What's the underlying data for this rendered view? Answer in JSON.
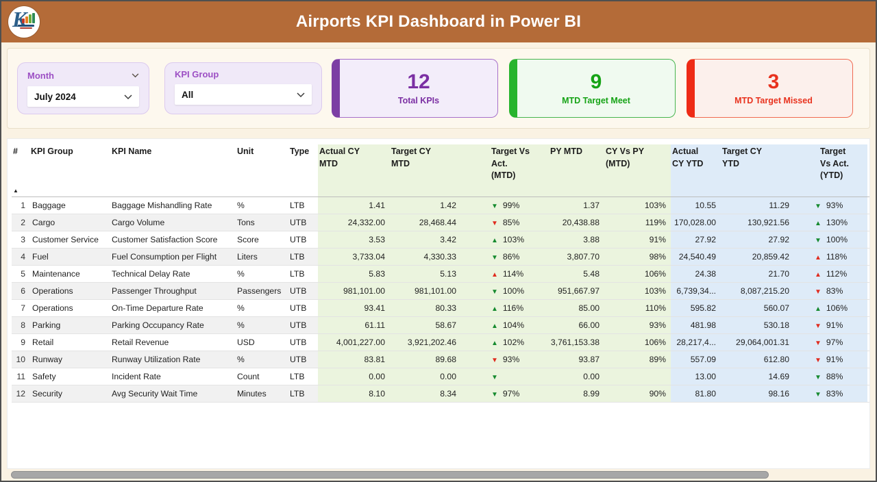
{
  "header": {
    "title": "Airports KPI Dashboard in Power BI",
    "logo_letter": "K"
  },
  "filters": {
    "month": {
      "label": "Month",
      "value": "July 2024"
    },
    "kpi_group": {
      "label": "KPI Group",
      "value": "All"
    }
  },
  "cards": {
    "total": {
      "value": "12",
      "label": "Total KPIs"
    },
    "meet": {
      "value": "9",
      "label": "MTD Target Meet"
    },
    "missed": {
      "value": "3",
      "label": "MTD Target Missed"
    }
  },
  "table": {
    "columns": [
      {
        "key": "num",
        "label": "#",
        "section": "plain"
      },
      {
        "key": "group",
        "label": "KPI Group",
        "section": "plain"
      },
      {
        "key": "name",
        "label": "KPI Name",
        "section": "plain"
      },
      {
        "key": "unit",
        "label": "Unit",
        "section": "plain"
      },
      {
        "key": "type",
        "label": "Type",
        "section": "plain"
      },
      {
        "key": "actual_mtd",
        "label": "Actual CY\nMTD",
        "section": "green"
      },
      {
        "key": "target_mtd",
        "label": "Target CY\nMTD",
        "section": "green"
      },
      {
        "key": "tva_mtd",
        "label": "Target Vs\nAct.\n(MTD)",
        "section": "green"
      },
      {
        "key": "py_mtd",
        "label": "PY MTD",
        "section": "green"
      },
      {
        "key": "cyvspy",
        "label": "CY Vs PY\n(MTD)",
        "section": "green"
      },
      {
        "key": "actual_ytd",
        "label": "Actual\nCY YTD",
        "section": "blue"
      },
      {
        "key": "target_ytd",
        "label": "Target CY\nYTD",
        "section": "blue"
      },
      {
        "key": "tva_ytd",
        "label": "Target\nVs Act.\n(YTD)",
        "section": "blue"
      }
    ],
    "sort": {
      "column": "num",
      "direction": "ascending"
    },
    "rows": [
      {
        "num": "1",
        "group": "Baggage",
        "name": "Baggage Mishandling Rate",
        "unit": "%",
        "type": "LTB",
        "actual_mtd": "1.41",
        "target_mtd": "1.42",
        "tva_mtd": {
          "dir": "down",
          "status": "green",
          "pct": "99%"
        },
        "py_mtd": "1.37",
        "cyvspy": "103%",
        "actual_ytd": "10.55",
        "target_ytd": "11.29",
        "tva_ytd": {
          "dir": "down",
          "status": "green",
          "pct": "93%"
        }
      },
      {
        "num": "2",
        "group": "Cargo",
        "name": "Cargo Volume",
        "unit": "Tons",
        "type": "UTB",
        "actual_mtd": "24,332.00",
        "target_mtd": "28,468.44",
        "tva_mtd": {
          "dir": "down",
          "status": "red",
          "pct": "85%"
        },
        "py_mtd": "20,438.88",
        "cyvspy": "119%",
        "actual_ytd": "170,028.00",
        "target_ytd": "130,921.56",
        "tva_ytd": {
          "dir": "up",
          "status": "green",
          "pct": "130%"
        }
      },
      {
        "num": "3",
        "group": "Customer Service",
        "name": "Customer Satisfaction Score",
        "unit": "Score",
        "type": "UTB",
        "actual_mtd": "3.53",
        "target_mtd": "3.42",
        "tva_mtd": {
          "dir": "up",
          "status": "green",
          "pct": "103%"
        },
        "py_mtd": "3.88",
        "cyvspy": "91%",
        "actual_ytd": "27.92",
        "target_ytd": "27.92",
        "tva_ytd": {
          "dir": "down",
          "status": "green",
          "pct": "100%"
        }
      },
      {
        "num": "4",
        "group": "Fuel",
        "name": "Fuel Consumption per Flight",
        "unit": "Liters",
        "type": "LTB",
        "actual_mtd": "3,733.04",
        "target_mtd": "4,330.33",
        "tva_mtd": {
          "dir": "down",
          "status": "green",
          "pct": "86%"
        },
        "py_mtd": "3,807.70",
        "cyvspy": "98%",
        "actual_ytd": "24,540.49",
        "target_ytd": "20,859.42",
        "tva_ytd": {
          "dir": "up",
          "status": "red",
          "pct": "118%"
        }
      },
      {
        "num": "5",
        "group": "Maintenance",
        "name": "Technical Delay Rate",
        "unit": "%",
        "type": "LTB",
        "actual_mtd": "5.83",
        "target_mtd": "5.13",
        "tva_mtd": {
          "dir": "up",
          "status": "red",
          "pct": "114%"
        },
        "py_mtd": "5.48",
        "cyvspy": "106%",
        "actual_ytd": "24.38",
        "target_ytd": "21.70",
        "tva_ytd": {
          "dir": "up",
          "status": "red",
          "pct": "112%"
        }
      },
      {
        "num": "6",
        "group": "Operations",
        "name": "Passenger Throughput",
        "unit": "Passengers",
        "type": "UTB",
        "actual_mtd": "981,101.00",
        "target_mtd": "981,101.00",
        "tva_mtd": {
          "dir": "down",
          "status": "green",
          "pct": "100%"
        },
        "py_mtd": "951,667.97",
        "cyvspy": "103%",
        "actual_ytd": "6,739,34...",
        "target_ytd": "8,087,215.20",
        "tva_ytd": {
          "dir": "down",
          "status": "red",
          "pct": "83%"
        }
      },
      {
        "num": "7",
        "group": "Operations",
        "name": "On-Time Departure Rate",
        "unit": "%",
        "type": "UTB",
        "actual_mtd": "93.41",
        "target_mtd": "80.33",
        "tva_mtd": {
          "dir": "up",
          "status": "green",
          "pct": "116%"
        },
        "py_mtd": "85.00",
        "cyvspy": "110%",
        "actual_ytd": "595.82",
        "target_ytd": "560.07",
        "tva_ytd": {
          "dir": "up",
          "status": "green",
          "pct": "106%"
        }
      },
      {
        "num": "8",
        "group": "Parking",
        "name": "Parking Occupancy Rate",
        "unit": "%",
        "type": "UTB",
        "actual_mtd": "61.11",
        "target_mtd": "58.67",
        "tva_mtd": {
          "dir": "up",
          "status": "green",
          "pct": "104%"
        },
        "py_mtd": "66.00",
        "cyvspy": "93%",
        "actual_ytd": "481.98",
        "target_ytd": "530.18",
        "tva_ytd": {
          "dir": "down",
          "status": "red",
          "pct": "91%"
        }
      },
      {
        "num": "9",
        "group": "Retail",
        "name": "Retail Revenue",
        "unit": "USD",
        "type": "UTB",
        "actual_mtd": "4,001,227.00",
        "target_mtd": "3,921,202.46",
        "tva_mtd": {
          "dir": "up",
          "status": "green",
          "pct": "102%"
        },
        "py_mtd": "3,761,153.38",
        "cyvspy": "106%",
        "actual_ytd": "28,217,4...",
        "target_ytd": "29,064,001.31",
        "tva_ytd": {
          "dir": "down",
          "status": "red",
          "pct": "97%"
        }
      },
      {
        "num": "10",
        "group": "Runway",
        "name": "Runway Utilization Rate",
        "unit": "%",
        "type": "UTB",
        "actual_mtd": "83.81",
        "target_mtd": "89.68",
        "tva_mtd": {
          "dir": "down",
          "status": "red",
          "pct": "93%"
        },
        "py_mtd": "93.87",
        "cyvspy": "89%",
        "actual_ytd": "557.09",
        "target_ytd": "612.80",
        "tva_ytd": {
          "dir": "down",
          "status": "red",
          "pct": "91%"
        }
      },
      {
        "num": "11",
        "group": "Safety",
        "name": "Incident Rate",
        "unit": "Count",
        "type": "LTB",
        "actual_mtd": "0.00",
        "target_mtd": "0.00",
        "tva_mtd": {
          "dir": "down",
          "status": "green",
          "pct": ""
        },
        "py_mtd": "0.00",
        "cyvspy": "",
        "actual_ytd": "13.00",
        "target_ytd": "14.69",
        "tva_ytd": {
          "dir": "down",
          "status": "green",
          "pct": "88%"
        }
      },
      {
        "num": "12",
        "group": "Security",
        "name": "Avg Security Wait Time",
        "unit": "Minutes",
        "type": "LTB",
        "actual_mtd": "8.10",
        "target_mtd": "8.34",
        "tva_mtd": {
          "dir": "down",
          "status": "green",
          "pct": "97%"
        },
        "py_mtd": "8.99",
        "cyvspy": "90%",
        "actual_ytd": "81.80",
        "target_ytd": "98.16",
        "tva_ytd": {
          "dir": "down",
          "status": "green",
          "pct": "83%"
        }
      }
    ]
  },
  "colors": {
    "topbar": "#B46B38",
    "page_bg": "#FAF2E3",
    "panel_bg": "#FDF8EE",
    "panel_border": "#E9DFC9",
    "slicer_bg": "#F0E9F8",
    "slicer_border": "#DBC9EE",
    "slicer_label": "#9C4FC4",
    "purple": "#7B2FA3",
    "purple_bg": "#F3EDFA",
    "purple_border": "#A66FC9",
    "purple_bar": "#7C3FA4",
    "green": "#16A316",
    "green_bg": "#F0FAF0",
    "green_border": "#45B44D",
    "green_bar": "#28B42E",
    "red": "#E8321E",
    "red_bg": "#FCF0EC",
    "red_border": "#F06A50",
    "red_bar": "#EE2B16",
    "col_green": "#EBF4DE",
    "col_blue": "#DEEBF8",
    "arrow_green": "#168A2F",
    "arrow_red": "#E02B1E",
    "stripe": "#F1F1F1",
    "row_border": "#E3E3E3",
    "scrollbar": "#A7A7A7"
  }
}
